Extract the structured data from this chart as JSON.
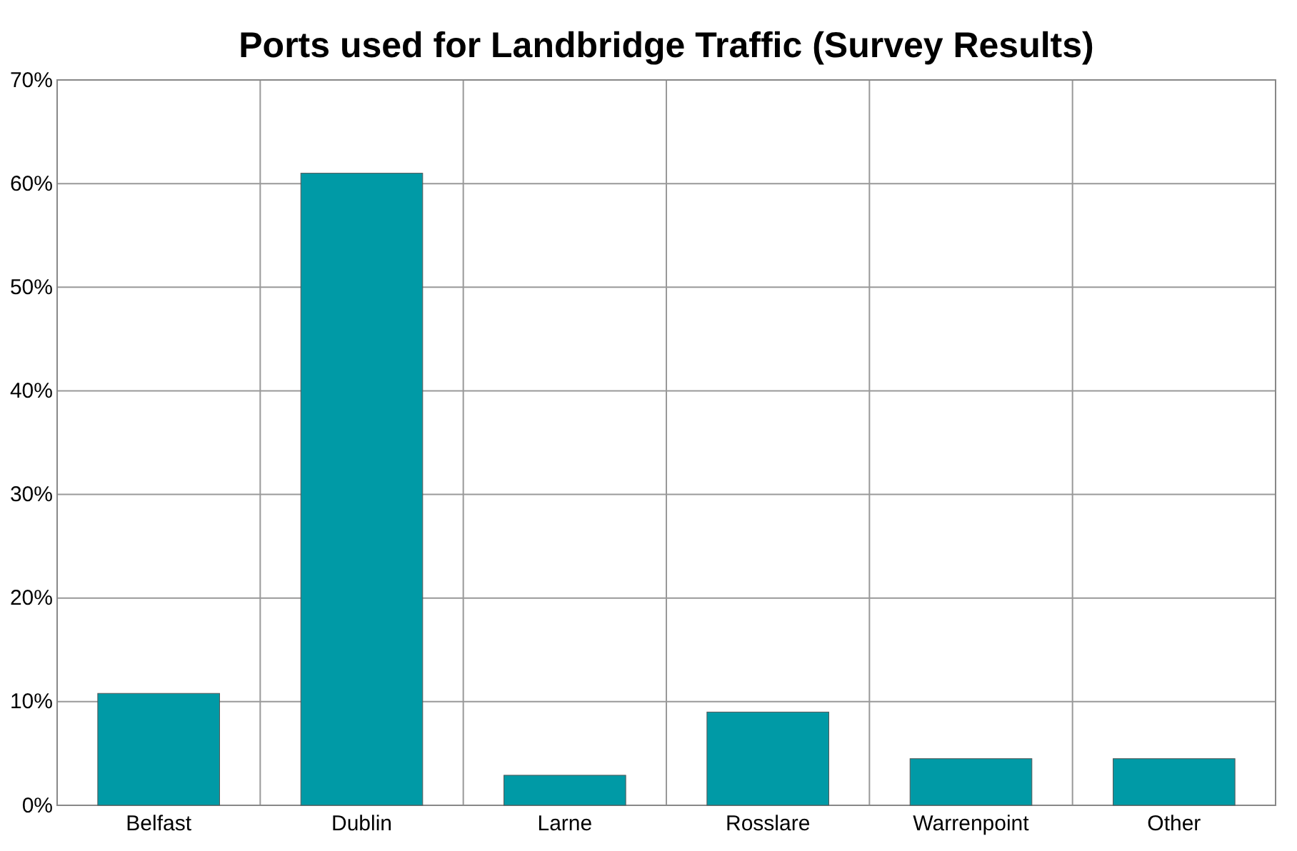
{
  "chart_data": {
    "type": "bar",
    "title": "Ports used for Landbridge Traffic (Survey Results)",
    "categories": [
      "Belfast",
      "Dublin",
      "Larne",
      "Rosslare",
      "Warrenpoint",
      "Other"
    ],
    "values": [
      10.8,
      61,
      2.9,
      9,
      4.5,
      4.5
    ],
    "color": "#009aa6",
    "ylim": [
      0,
      70
    ],
    "yticks": [
      {
        "value": 0,
        "label": "0%"
      },
      {
        "value": 10,
        "label": "10%"
      },
      {
        "value": 20,
        "label": "20%"
      },
      {
        "value": 30,
        "label": "30%"
      },
      {
        "value": 40,
        "label": "40%"
      },
      {
        "value": 50,
        "label": "50%"
      },
      {
        "value": 60,
        "label": "60%"
      },
      {
        "value": 70,
        "label": "70%"
      }
    ],
    "grid": true
  }
}
